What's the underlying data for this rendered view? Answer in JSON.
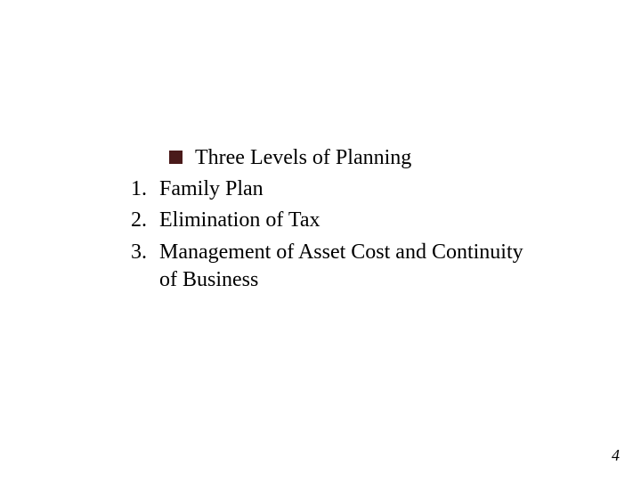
{
  "slide": {
    "bullet_title": "Three Levels of Planning",
    "items": [
      {
        "number": "1.",
        "text": "Family Plan"
      },
      {
        "number": "2.",
        "text": "Elimination of Tax"
      },
      {
        "number": "3.",
        "text": "Management of Asset Cost and Continuity of Business"
      }
    ],
    "page_number": "4"
  },
  "colors": {
    "bullet_color": "#4a1a1a",
    "text_color": "#000000",
    "background": "#ffffff"
  },
  "typography": {
    "body_fontsize": 24,
    "page_number_fontsize": 18,
    "font_family": "Times New Roman"
  }
}
